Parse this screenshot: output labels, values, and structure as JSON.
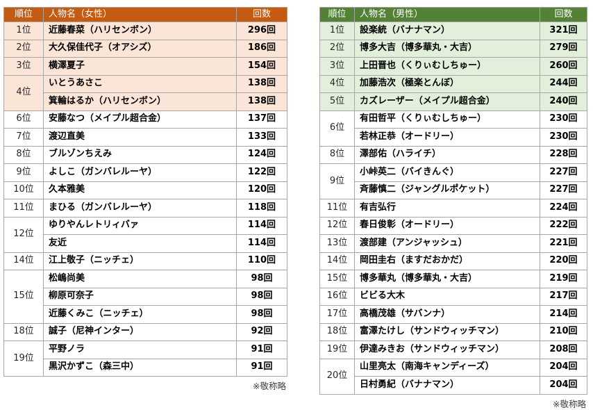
{
  "page": {
    "background_color": "#ffffff",
    "border_color": "#a6a6a6"
  },
  "tables": [
    {
      "id": "female-ranking",
      "accent_color": "#c55a11",
      "highlight_color": "#fbe5d6",
      "header_text_color": "#ffffff",
      "header": {
        "rank": "順位",
        "name": "人物名（女性）",
        "count": "回数"
      },
      "footnote": "※敬称略",
      "groups": [
        {
          "rank": "1位",
          "highlight": true,
          "entries": [
            {
              "name": "近藤春菜（ハリセンボン）",
              "count": "296回"
            }
          ]
        },
        {
          "rank": "2位",
          "highlight": true,
          "entries": [
            {
              "name": "大久保佳代子（オアシズ）",
              "count": "186回"
            }
          ]
        },
        {
          "rank": "3位",
          "highlight": true,
          "entries": [
            {
              "name": "横澤夏子",
              "count": "154回"
            }
          ]
        },
        {
          "rank": "4位",
          "highlight": true,
          "entries": [
            {
              "name": "いとうあさこ",
              "count": "138回"
            },
            {
              "name": "箕輪はるか（ハリセンボン）",
              "count": "138回"
            }
          ]
        },
        {
          "rank": "6位",
          "highlight": false,
          "entries": [
            {
              "name": "安藤なつ（メイプル超合金）",
              "count": "137回"
            }
          ]
        },
        {
          "rank": "7位",
          "highlight": false,
          "entries": [
            {
              "name": "渡辺直美",
              "count": "133回"
            }
          ]
        },
        {
          "rank": "8位",
          "highlight": false,
          "entries": [
            {
              "name": "ブルゾンちえみ",
              "count": "124回"
            }
          ]
        },
        {
          "rank": "9位",
          "highlight": false,
          "entries": [
            {
              "name": "よしこ（ガンバレルーヤ）",
              "count": "122回"
            }
          ]
        },
        {
          "rank": "10位",
          "highlight": false,
          "entries": [
            {
              "name": "久本雅美",
              "count": "120回"
            }
          ]
        },
        {
          "rank": "11位",
          "highlight": false,
          "entries": [
            {
              "name": "まひる（ガンバレルーヤ）",
              "count": "118回"
            }
          ]
        },
        {
          "rank": "12位",
          "highlight": false,
          "entries": [
            {
              "name": "ゆりやんレトリィバァ",
              "count": "114回"
            },
            {
              "name": "友近",
              "count": "114回"
            }
          ]
        },
        {
          "rank": "14位",
          "highlight": false,
          "entries": [
            {
              "name": "江上敬子（ニッチェ）",
              "count": "110回"
            }
          ]
        },
        {
          "rank": "15位",
          "highlight": false,
          "entries": [
            {
              "name": "松嶋尚美",
              "count": "98回"
            },
            {
              "name": "柳原可奈子",
              "count": "98回"
            },
            {
              "name": "近藤くみこ（ニッチェ）",
              "count": "98回"
            }
          ]
        },
        {
          "rank": "18位",
          "highlight": false,
          "entries": [
            {
              "name": "誠子（尼神インター）",
              "count": "92回"
            }
          ]
        },
        {
          "rank": "19位",
          "highlight": false,
          "entries": [
            {
              "name": "平野ノラ",
              "count": "91回"
            },
            {
              "name": "黒沢かずこ（森三中）",
              "count": "91回"
            }
          ]
        }
      ]
    },
    {
      "id": "male-ranking",
      "accent_color": "#538135",
      "highlight_color": "#e2efda",
      "header_text_color": "#ffffff",
      "header": {
        "rank": "順位",
        "name": "人物名（男性）",
        "count": "回数"
      },
      "footnote": "※敬称略",
      "groups": [
        {
          "rank": "1位",
          "highlight": true,
          "entries": [
            {
              "name": "設楽統（バナナマン）",
              "count": "321回"
            }
          ]
        },
        {
          "rank": "2位",
          "highlight": true,
          "entries": [
            {
              "name": "博多大吉（博多華丸・大吉）",
              "count": "279回"
            }
          ]
        },
        {
          "rank": "3位",
          "highlight": true,
          "entries": [
            {
              "name": "上田晋也（くりぃむしちゅー）",
              "count": "260回"
            }
          ]
        },
        {
          "rank": "4位",
          "highlight": true,
          "entries": [
            {
              "name": "加藤浩次（極楽とんぼ）",
              "count": "244回"
            }
          ]
        },
        {
          "rank": "5位",
          "highlight": true,
          "entries": [
            {
              "name": "カズレーザー（メイプル超合金）",
              "count": "240回"
            }
          ]
        },
        {
          "rank": "6位",
          "highlight": false,
          "entries": [
            {
              "name": "有田哲平（くりぃむしちゅー）",
              "count": "230回"
            },
            {
              "name": "若林正恭（オードリー）",
              "count": "230回"
            }
          ]
        },
        {
          "rank": "8位",
          "highlight": false,
          "entries": [
            {
              "name": "澤部佑（ハライチ）",
              "count": "228回"
            }
          ]
        },
        {
          "rank": "9位",
          "highlight": false,
          "entries": [
            {
              "name": "小峠英二（バイきんぐ）",
              "count": "227回"
            },
            {
              "name": "斉藤慎二（ジャングルポケット）",
              "count": "227回"
            }
          ]
        },
        {
          "rank": "11位",
          "highlight": false,
          "entries": [
            {
              "name": "有吉弘行",
              "count": "224回"
            }
          ]
        },
        {
          "rank": "12位",
          "highlight": false,
          "entries": [
            {
              "name": "春日俊彰（オードリー）",
              "count": "222回"
            }
          ]
        },
        {
          "rank": "13位",
          "highlight": false,
          "entries": [
            {
              "name": "渡部建（アンジャッシュ）",
              "count": "221回"
            }
          ]
        },
        {
          "rank": "14位",
          "highlight": false,
          "entries": [
            {
              "name": "岡田圭右（ますだおかだ）",
              "count": "220回"
            }
          ]
        },
        {
          "rank": "15位",
          "highlight": false,
          "entries": [
            {
              "name": "博多華丸（博多華丸・大吉）",
              "count": "219回"
            }
          ]
        },
        {
          "rank": "16位",
          "highlight": false,
          "entries": [
            {
              "name": "ビビる大木",
              "count": "217回"
            }
          ]
        },
        {
          "rank": "17位",
          "highlight": false,
          "entries": [
            {
              "name": "高橋茂雄（サバンナ）",
              "count": "214回"
            }
          ]
        },
        {
          "rank": "18位",
          "highlight": false,
          "entries": [
            {
              "name": "富澤たけし（サンドウィッチマン）",
              "count": "210回"
            }
          ]
        },
        {
          "rank": "19位",
          "highlight": false,
          "entries": [
            {
              "name": "伊達みきお（サンドウィッチマン）",
              "count": "208回"
            }
          ]
        },
        {
          "rank": "20位",
          "highlight": false,
          "entries": [
            {
              "name": "山里亮太（南海キャンディーズ）",
              "count": "204回"
            },
            {
              "name": "日村勇紀（バナナマン）",
              "count": "204回"
            }
          ]
        }
      ]
    }
  ]
}
